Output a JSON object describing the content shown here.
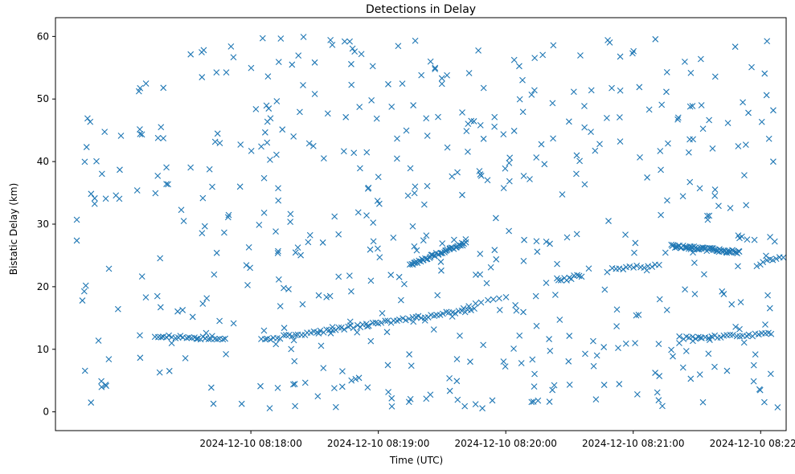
{
  "chart_data": {
    "type": "scatter",
    "title": "Detections in Delay",
    "xlabel": "Time (UTC)",
    "ylabel": "Bistatic Delay (km)",
    "x_unit": "seconds after 2024-12-10 08:17:00 UTC",
    "xlim": [
      -32,
      312
    ],
    "ylim": [
      -3,
      63
    ],
    "grid": false,
    "marker": "x",
    "color": "#1f77b4",
    "x_tick_values": [
      60,
      120,
      180,
      240,
      300
    ],
    "x_tick_labels": [
      "2024-12-10 08:18:00",
      "2024-12-10 08:19:00",
      "2024-12-10 08:20:00",
      "2024-12-10 08:21:00",
      "2024-12-10 08:22:00"
    ],
    "y_tick_values": [
      0,
      10,
      20,
      30,
      40,
      50,
      60
    ],
    "y_tick_labels": [
      "0",
      "10",
      "20",
      "30",
      "40",
      "50",
      "60"
    ],
    "series": [
      {
        "name": "Detections",
        "tracks": [
          {
            "description": "track near 12 km",
            "x_start": 15,
            "x_end": 48,
            "y_start": 12.2,
            "y_end": 11.6,
            "count": 26
          },
          {
            "description": "track rising to 16.5 km",
            "x_start": 65,
            "x_end": 165,
            "y_start": 11.5,
            "y_end": 16.4,
            "count": 70
          },
          {
            "description": "track rising to 27 km",
            "x_start": 135,
            "x_end": 161,
            "y_start": 23.5,
            "y_end": 27.0,
            "count": 45
          },
          {
            "description": "track 16.5 to 18.5 km",
            "x_start": 160,
            "x_end": 180,
            "y_start": 16.5,
            "y_end": 18.5,
            "count": 8
          },
          {
            "description": "track near 21.5 km",
            "x_start": 205,
            "x_end": 216,
            "y_start": 21.0,
            "y_end": 21.8,
            "count": 10
          },
          {
            "description": "track near 23 km",
            "x_start": 230,
            "x_end": 252,
            "y_start": 22.7,
            "y_end": 23.5,
            "count": 14
          },
          {
            "description": "track near 26 km",
            "x_start": 258,
            "x_end": 290,
            "y_start": 26.5,
            "y_end": 25.5,
            "count": 60
          },
          {
            "description": "track near 12 km (right)",
            "x_start": 262,
            "x_end": 305,
            "y_start": 11.8,
            "y_end": 12.4,
            "count": 30
          },
          {
            "description": "track near 24 km (right)",
            "x_start": 298,
            "x_end": 312,
            "y_start": 23.5,
            "y_end": 25.0,
            "count": 10
          }
        ],
        "clutter": {
          "x_range": [
            -32,
            312
          ],
          "y_range": [
            0.5,
            60
          ],
          "count": 540
        }
      }
    ]
  }
}
